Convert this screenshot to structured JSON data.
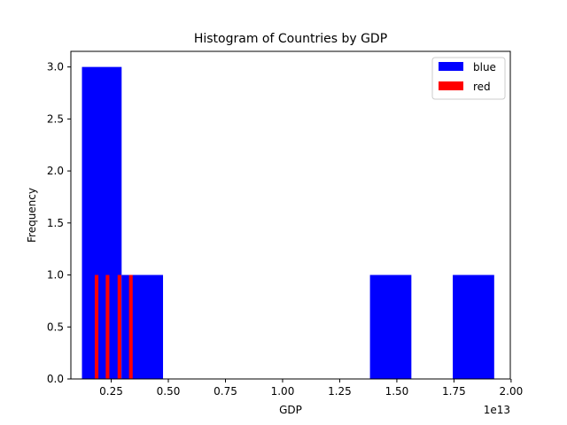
{
  "chart_data": {
    "type": "bar",
    "title": "Histogram of Countries by GDP",
    "xlabel": "GDP",
    "ylabel": "Frequency",
    "x_offset_label": "1e13",
    "xlim": [
      735000000000.0,
      19965000000000.0
    ],
    "ylim": [
      0,
      3.15
    ],
    "x_ticks": [
      2500000000000.0,
      5000000000000.0,
      7500000000000.0,
      10000000000000.0,
      12500000000000.0,
      15000000000000.0,
      17500000000000.0,
      20000000000000.0
    ],
    "x_tick_labels": [
      "0.25",
      "0.50",
      "0.75",
      "1.00",
      "1.25",
      "1.50",
      "1.75",
      "2.00"
    ],
    "y_ticks": [
      0,
      0.5,
      1.0,
      1.5,
      2.0,
      2.5,
      3.0
    ],
    "y_tick_labels": [
      "0.0",
      "0.5",
      "1.0",
      "1.5",
      "2.0",
      "2.5",
      "3.0"
    ],
    "grid": false,
    "legend_position": "top-right",
    "series": [
      {
        "name": "blue",
        "color": "#0000ff",
        "bins": [
          {
            "x0": 1220000000000.0,
            "x1": 2956000000000.0,
            "count": 3
          },
          {
            "x0": 2956000000000.0,
            "x1": 4768000000000.0,
            "count": 1
          },
          {
            "x0": 13824000000000.0,
            "x1": 15636000000000.0,
            "count": 1
          },
          {
            "x0": 17448000000000.0,
            "x1": 19260000000000.0,
            "count": 1
          }
        ]
      },
      {
        "name": "red",
        "color": "#ff0000",
        "bins": [
          {
            "x0": 1780000000000.0,
            "x1": 1940000000000.0,
            "count": 1
          },
          {
            "x0": 2260000000000.0,
            "x1": 2420000000000.0,
            "count": 1
          },
          {
            "x0": 2780000000000.0,
            "x1": 2940000000000.0,
            "count": 1
          },
          {
            "x0": 3280000000000.0,
            "x1": 3440000000000.0,
            "count": 1
          }
        ]
      }
    ]
  }
}
